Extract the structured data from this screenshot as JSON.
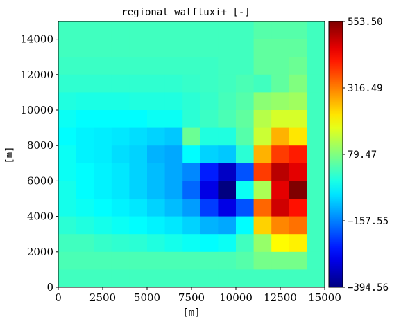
{
  "chart_data": {
    "type": "heatmap",
    "title": "regional watfluxi+ [-]",
    "xlabel": "[m]",
    "ylabel": "[m]",
    "xlim": [
      0,
      15000
    ],
    "ylim": [
      0,
      15000
    ],
    "xticks": [
      0,
      2500,
      5000,
      7500,
      10000,
      12500,
      15000
    ],
    "xtick_labels": [
      "0",
      "2500",
      "5000",
      "7500",
      "10000",
      "12500",
      "15000"
    ],
    "yticks": [
      0,
      2000,
      4000,
      6000,
      8000,
      10000,
      12000,
      14000
    ],
    "ytick_labels": [
      "0",
      "2000",
      "4000",
      "6000",
      "8000",
      "10000",
      "12000",
      "14000"
    ],
    "colorbar": {
      "colormap": "jet",
      "vmin": -394.56,
      "vmax": 553.5,
      "ticks": [
        -394.56,
        -157.55,
        79.47,
        316.49,
        553.5
      ],
      "tick_labels": [
        "−394.56",
        "−157.55",
        "79.47",
        "316.49",
        "553.50"
      ]
    },
    "grid": {
      "x_edges": [
        0,
        1000,
        2000,
        3000,
        4000,
        5000,
        6000,
        7000,
        8000,
        9000,
        10000,
        11000,
        12000,
        13000,
        14000,
        15000
      ],
      "y_edges": [
        0,
        1000,
        2000,
        3000,
        4000,
        5000,
        6000,
        7000,
        8000,
        9000,
        10000,
        11000,
        12000,
        13000,
        14000,
        15000
      ],
      "rows_top_to_bottom": [
        [
          20,
          20,
          20,
          20,
          20,
          20,
          20,
          20,
          20,
          20,
          20,
          40,
          40,
          40,
          20
        ],
        [
          20,
          20,
          20,
          20,
          20,
          20,
          20,
          20,
          20,
          20,
          20,
          50,
          50,
          50,
          20
        ],
        [
          15,
          15,
          15,
          15,
          15,
          15,
          15,
          15,
          15,
          20,
          20,
          50,
          50,
          60,
          20
        ],
        [
          5,
          5,
          5,
          5,
          5,
          5,
          5,
          10,
          15,
          20,
          30,
          20,
          50,
          80,
          20
        ],
        [
          -10,
          -15,
          -15,
          -15,
          -10,
          -10,
          -10,
          0,
          10,
          25,
          40,
          90,
          100,
          110,
          20
        ],
        [
          -30,
          -40,
          -40,
          -40,
          -40,
          -30,
          -30,
          0,
          15,
          30,
          50,
          130,
          160,
          160,
          20
        ],
        [
          -40,
          -50,
          -55,
          -60,
          -70,
          -80,
          -90,
          60,
          -10,
          -10,
          40,
          150,
          270,
          220,
          20
        ],
        [
          -30,
          -50,
          -55,
          -70,
          -80,
          -110,
          -120,
          -40,
          -80,
          -90,
          0,
          270,
          380,
          410,
          20
        ],
        [
          -30,
          -40,
          -50,
          -60,
          -80,
          -100,
          -120,
          -150,
          -250,
          -330,
          -200,
          380,
          500,
          460,
          20
        ],
        [
          -20,
          -40,
          -50,
          -60,
          -80,
          -100,
          -120,
          -180,
          -300,
          -394,
          -30,
          120,
          460,
          553,
          20
        ],
        [
          -20,
          -30,
          -40,
          -50,
          -60,
          -80,
          -100,
          -130,
          -220,
          -300,
          -200,
          340,
          480,
          420,
          20
        ],
        [
          0,
          -10,
          -20,
          -30,
          -40,
          -50,
          -60,
          -80,
          -110,
          -120,
          -40,
          240,
          310,
          330,
          20
        ],
        [
          20,
          20,
          10,
          5,
          0,
          -10,
          -20,
          -30,
          -40,
          -30,
          20,
          100,
          200,
          210,
          20
        ],
        [
          30,
          30,
          30,
          30,
          30,
          30,
          30,
          30,
          30,
          30,
          40,
          70,
          70,
          70,
          20
        ],
        [
          20,
          20,
          20,
          20,
          20,
          20,
          20,
          20,
          20,
          20,
          20,
          20,
          20,
          20,
          20
        ]
      ]
    }
  }
}
